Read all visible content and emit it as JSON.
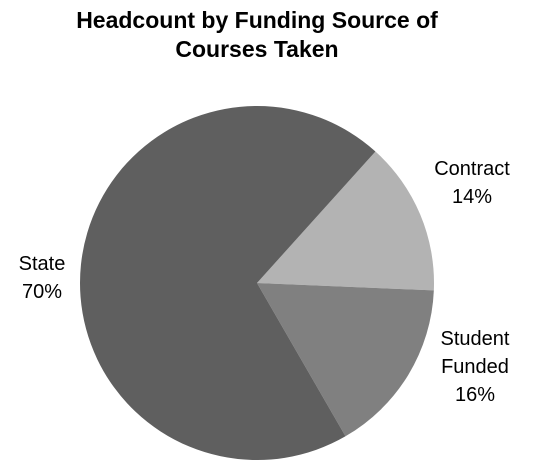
{
  "chart_data": {
    "type": "pie",
    "title": "Headcount by Funding Source of Courses Taken",
    "categories": [
      "Contract",
      "Student Funded",
      "State"
    ],
    "values": [
      14,
      16,
      70
    ],
    "value_labels": [
      "14%",
      "16%",
      "70%"
    ],
    "colors": [
      "#b3b3b3",
      "#808080",
      "#5f5f5f"
    ]
  }
}
